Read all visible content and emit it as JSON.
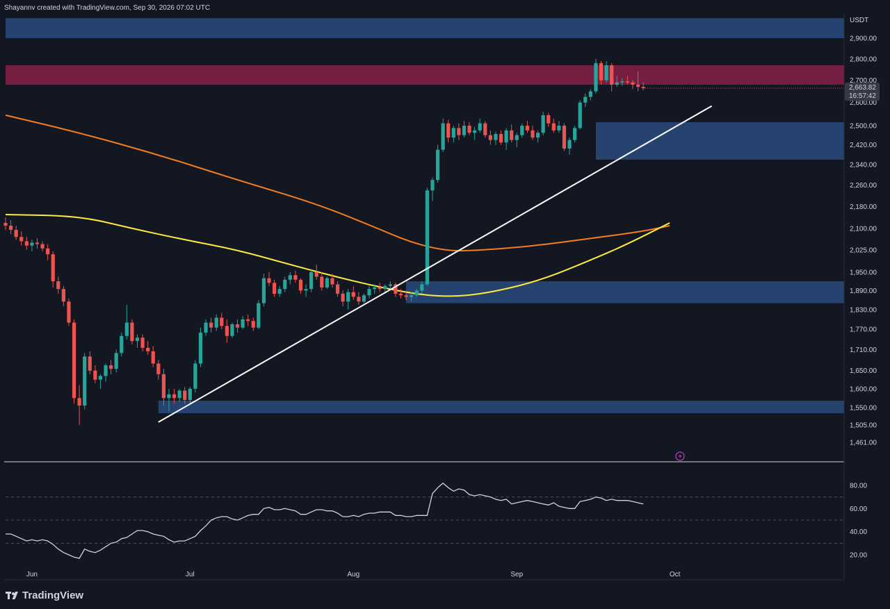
{
  "header": {
    "credit": "Shayannv created with TradingView.com, Sep 30, 2026 07:02 UTC"
  },
  "brand": {
    "name": "TradingView"
  },
  "price_axis": {
    "currency": "USDT"
  },
  "colors": {
    "bg": "#131722",
    "candle_up": "#26a69a",
    "candle_down": "#ef5350",
    "zone_blue": "#2a4b7c",
    "zone_red": "#7a1f45",
    "ma_orange": "#f57c1f",
    "ma_yellow": "#ffeb3b",
    "rsi_line": "#d1d4dc",
    "trendline": "#ffffff",
    "current_price_bg": "#363a45"
  },
  "icons": {
    "lightning": "lightning-icon",
    "logo": "tradingview-logo-icon"
  },
  "chart_data": [
    {
      "type": "candlestick",
      "title": "",
      "ylabel": "USDT",
      "x_ticks": [
        "Jun",
        "Jul",
        "Aug",
        "Sep",
        "Oct"
      ],
      "y_ticks": [
        "2,900.00",
        "2,800.00",
        "2,700.00",
        "2,600.00",
        "2,500.00",
        "2,420.00",
        "2,340.00",
        "2,260.00",
        "2,180.00",
        "2,100.00",
        "2,025.00",
        "1,950.00",
        "1,890.00",
        "1,830.00",
        "1,770.00",
        "1,710.00",
        "1,650.00",
        "1,600.00",
        "1,550.00",
        "1,505.00",
        "1,461.00"
      ],
      "current_price": {
        "value": "2,663.82",
        "countdown": "16:57:42"
      },
      "ylim": [
        1440,
        3000
      ],
      "zones": [
        {
          "name": "supply-zone-top",
          "color": "blue",
          "y1": 2900,
          "y2": 3000
        },
        {
          "name": "resistance-zone",
          "color": "red",
          "y1": 2680,
          "y2": 2770
        },
        {
          "name": "demand-zone-upper",
          "color": "blue",
          "y1": 2360,
          "y2": 2515,
          "from": "Sep 16"
        },
        {
          "name": "demand-zone-mid",
          "color": "blue",
          "y1": 1850,
          "y2": 1920,
          "from": "Aug 11"
        },
        {
          "name": "demand-zone-low",
          "color": "blue",
          "y1": 1535,
          "y2": 1568,
          "from": "Jun 25"
        }
      ],
      "moving_averages": [
        {
          "name": "MA200",
          "color": "orange",
          "points": [
            [
              "May 27",
              2545
            ],
            [
              "Jun 10",
              2470
            ],
            [
              "Jun 25",
              2380
            ],
            [
              "Jul 10",
              2280
            ],
            [
              "Jul 25",
              2190
            ],
            [
              "Aug 5",
              2105
            ],
            [
              "Aug 12",
              2050
            ],
            [
              "Aug 19",
              2020
            ],
            [
              "Aug 26",
              2025
            ],
            [
              "Sep 5",
              2040
            ],
            [
              "Sep 15",
              2065
            ],
            [
              "Sep 25",
              2090
            ],
            [
              "Sep 30",
              2110
            ]
          ]
        },
        {
          "name": "MA100",
          "color": "yellow",
          "points": [
            [
              "May 27",
              2150
            ],
            [
              "Jun 10",
              2145
            ],
            [
              "Jun 20",
              2100
            ],
            [
              "Jun 30",
              2060
            ],
            [
              "Jul 10",
              2025
            ],
            [
              "Jul 20",
              1975
            ],
            [
              "Aug 1",
              1920
            ],
            [
              "Aug 12",
              1880
            ],
            [
              "Aug 19",
              1870
            ],
            [
              "Aug 26",
              1880
            ],
            [
              "Sep 5",
              1920
            ],
            [
              "Sep 15",
              1990
            ],
            [
              "Sep 22",
              2045
            ],
            [
              "Sep 30",
              2120
            ]
          ]
        }
      ],
      "trendline": {
        "from": [
          "Jun 25",
          1512
        ],
        "to": [
          "Oct 8",
          2585
        ]
      },
      "candles_ohlc_start": "May 27",
      "candles_ohlc": [
        [
          2120,
          2140,
          2095,
          2110
        ],
        [
          2110,
          2130,
          2080,
          2095
        ],
        [
          2095,
          2110,
          2060,
          2070
        ],
        [
          2070,
          2090,
          2040,
          2055
        ],
        [
          2055,
          2070,
          2025,
          2040
        ],
        [
          2040,
          2060,
          2020,
          2050
        ],
        [
          2050,
          2065,
          2030,
          2045
        ],
        [
          2045,
          2055,
          2020,
          2030
        ],
        [
          2030,
          2045,
          1990,
          2010
        ],
        [
          2010,
          2020,
          1900,
          1920
        ],
        [
          1920,
          1935,
          1880,
          1895
        ],
        [
          1895,
          1905,
          1840,
          1855
        ],
        [
          1855,
          1865,
          1780,
          1790
        ],
        [
          1790,
          1800,
          1560,
          1575
        ],
        [
          1575,
          1610,
          1505,
          1555
        ],
        [
          1555,
          1700,
          1545,
          1690
        ],
        [
          1690,
          1705,
          1640,
          1650
        ],
        [
          1650,
          1665,
          1615,
          1625
        ],
        [
          1625,
          1640,
          1600,
          1635
        ],
        [
          1635,
          1670,
          1620,
          1665
        ],
        [
          1665,
          1680,
          1640,
          1655
        ],
        [
          1655,
          1710,
          1645,
          1700
        ],
        [
          1700,
          1760,
          1690,
          1750
        ],
        [
          1750,
          1845,
          1740,
          1790
        ],
        [
          1790,
          1800,
          1725,
          1735
        ],
        [
          1735,
          1755,
          1715,
          1745
        ],
        [
          1745,
          1755,
          1705,
          1715
        ],
        [
          1715,
          1735,
          1695,
          1705
        ],
        [
          1705,
          1720,
          1660,
          1670
        ],
        [
          1670,
          1680,
          1625,
          1640
        ],
        [
          1640,
          1655,
          1555,
          1575
        ],
        [
          1575,
          1600,
          1540,
          1585
        ],
        [
          1585,
          1600,
          1560,
          1575
        ],
        [
          1575,
          1600,
          1565,
          1595
        ],
        [
          1595,
          1605,
          1560,
          1570
        ],
        [
          1570,
          1605,
          1560,
          1600
        ],
        [
          1600,
          1680,
          1590,
          1670
        ],
        [
          1670,
          1775,
          1660,
          1760
        ],
        [
          1760,
          1800,
          1750,
          1790
        ],
        [
          1790,
          1805,
          1760,
          1775
        ],
        [
          1775,
          1815,
          1765,
          1805
        ],
        [
          1805,
          1820,
          1770,
          1780
        ],
        [
          1780,
          1800,
          1730,
          1750
        ],
        [
          1750,
          1790,
          1745,
          1785
        ],
        [
          1785,
          1800,
          1760,
          1775
        ],
        [
          1775,
          1810,
          1770,
          1800
        ],
        [
          1800,
          1815,
          1780,
          1795
        ],
        [
          1795,
          1805,
          1765,
          1775
        ],
        [
          1775,
          1860,
          1770,
          1850
        ],
        [
          1850,
          1945,
          1840,
          1930
        ],
        [
          1930,
          1950,
          1905,
          1915
        ],
        [
          1915,
          1925,
          1870,
          1880
        ],
        [
          1880,
          1905,
          1870,
          1895
        ],
        [
          1895,
          1935,
          1885,
          1925
        ],
        [
          1925,
          1950,
          1910,
          1940
        ],
        [
          1940,
          1955,
          1915,
          1925
        ],
        [
          1925,
          1930,
          1880,
          1890
        ],
        [
          1890,
          1910,
          1870,
          1895
        ],
        [
          1895,
          1960,
          1885,
          1950
        ],
        [
          1950,
          1975,
          1925,
          1935
        ],
        [
          1935,
          1950,
          1890,
          1900
        ],
        [
          1900,
          1935,
          1895,
          1930
        ],
        [
          1930,
          1945,
          1900,
          1910
        ],
        [
          1910,
          1920,
          1870,
          1880
        ],
        [
          1880,
          1890,
          1840,
          1855
        ],
        [
          1855,
          1895,
          1830,
          1885
        ],
        [
          1885,
          1905,
          1860,
          1870
        ],
        [
          1870,
          1885,
          1845,
          1855
        ],
        [
          1855,
          1880,
          1850,
          1875
        ],
        [
          1875,
          1905,
          1865,
          1895
        ],
        [
          1895,
          1910,
          1880,
          1900
        ],
        [
          1900,
          1915,
          1885,
          1895
        ],
        [
          1895,
          1910,
          1880,
          1905
        ],
        [
          1905,
          1920,
          1895,
          1910
        ],
        [
          1910,
          1915,
          1870,
          1880
        ],
        [
          1880,
          1895,
          1865,
          1875
        ],
        [
          1875,
          1890,
          1860,
          1870
        ],
        [
          1870,
          1885,
          1855,
          1875
        ],
        [
          1875,
          1895,
          1870,
          1890
        ],
        [
          1890,
          1920,
          1880,
          1910
        ],
        [
          1910,
          2250,
          1905,
          2240
        ],
        [
          2240,
          2290,
          2200,
          2280
        ],
        [
          2280,
          2420,
          2270,
          2400
        ],
        [
          2400,
          2530,
          2390,
          2510
        ],
        [
          2510,
          2525,
          2430,
          2450
        ],
        [
          2450,
          2500,
          2430,
          2490
        ],
        [
          2490,
          2510,
          2440,
          2460
        ],
        [
          2460,
          2520,
          2450,
          2500
        ],
        [
          2500,
          2515,
          2460,
          2470
        ],
        [
          2470,
          2495,
          2440,
          2480
        ],
        [
          2480,
          2530,
          2470,
          2510
        ],
        [
          2510,
          2520,
          2450,
          2460
        ],
        [
          2460,
          2480,
          2420,
          2440
        ],
        [
          2440,
          2475,
          2420,
          2465
        ],
        [
          2465,
          2480,
          2420,
          2430
        ],
        [
          2430,
          2490,
          2400,
          2480
        ],
        [
          2480,
          2505,
          2430,
          2440
        ],
        [
          2440,
          2470,
          2410,
          2460
        ],
        [
          2460,
          2510,
          2450,
          2500
        ],
        [
          2500,
          2520,
          2470,
          2480
        ],
        [
          2480,
          2500,
          2440,
          2450
        ],
        [
          2450,
          2480,
          2430,
          2470
        ],
        [
          2470,
          2560,
          2460,
          2545
        ],
        [
          2545,
          2555,
          2495,
          2510
        ],
        [
          2510,
          2530,
          2470,
          2480
        ],
        [
          2480,
          2520,
          2470,
          2500
        ],
        [
          2500,
          2510,
          2395,
          2405
        ],
        [
          2405,
          2450,
          2380,
          2440
        ],
        [
          2440,
          2500,
          2430,
          2490
        ],
        [
          2490,
          2610,
          2485,
          2600
        ],
        [
          2600,
          2640,
          2580,
          2625
        ],
        [
          2625,
          2660,
          2610,
          2650
        ],
        [
          2650,
          2800,
          2640,
          2780
        ],
        [
          2780,
          2790,
          2680,
          2700
        ],
        [
          2700,
          2790,
          2690,
          2770
        ],
        [
          2770,
          2780,
          2650,
          2680
        ],
        [
          2680,
          2720,
          2670,
          2690
        ],
        [
          2690,
          2710,
          2675,
          2695
        ],
        [
          2695,
          2720,
          2680,
          2690
        ],
        [
          2690,
          2700,
          2660,
          2680
        ],
        [
          2680,
          2740,
          2650,
          2670
        ],
        [
          2670,
          2690,
          2655,
          2664
        ]
      ]
    },
    {
      "type": "line",
      "title": "",
      "y_ticks": [
        "80.00",
        "60.00",
        "40.00",
        "20.00"
      ],
      "ylim": [
        5,
        95
      ],
      "levels": [
        70,
        50,
        30
      ],
      "series": [
        {
          "name": "",
          "start": "May 27",
          "values": [
            38,
            38,
            36,
            34,
            32,
            33,
            32,
            33,
            32,
            29,
            25,
            22,
            20,
            18,
            17,
            25,
            23,
            22,
            24,
            27,
            30,
            31,
            34,
            35,
            38,
            41,
            41,
            40,
            38,
            37,
            36,
            33,
            31,
            32,
            32,
            34,
            36,
            41,
            45,
            50,
            52,
            53,
            53,
            51,
            50,
            52,
            54,
            55,
            55,
            60,
            61,
            59,
            59,
            60,
            59,
            58,
            55,
            55,
            57,
            59,
            59,
            58,
            58,
            56,
            53,
            53,
            54,
            53,
            55,
            56,
            56,
            57,
            57,
            57,
            54,
            54,
            53,
            53,
            54,
            54,
            54,
            73,
            78,
            82,
            78,
            75,
            77,
            76,
            72,
            71,
            72,
            71,
            70,
            68,
            67,
            68,
            64,
            65,
            66,
            67,
            66,
            65,
            64,
            63,
            65,
            62,
            61,
            60,
            60,
            66,
            67,
            68,
            70,
            69,
            67,
            68,
            67,
            67,
            67,
            66,
            65,
            64
          ]
        }
      ]
    }
  ]
}
